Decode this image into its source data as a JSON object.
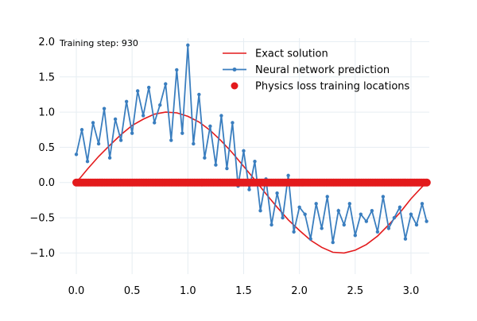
{
  "chart_data": {
    "type": "line",
    "annotation": "Training step: 930",
    "xlim": [
      0,
      3.1416
    ],
    "ylim": [
      -1.3,
      2.05
    ],
    "grid": true,
    "legend_position": "top-right",
    "x_ticks": [
      0.0,
      0.5,
      1.0,
      1.5,
      2.0,
      2.5,
      3.0
    ],
    "x_tick_labels": [
      "0.0",
      "0.5",
      "1.0",
      "1.5",
      "2.0",
      "2.5",
      "3.0"
    ],
    "y_ticks": [
      -1.0,
      -0.5,
      0.0,
      0.5,
      1.0,
      1.5,
      2.0
    ],
    "y_tick_labels": [
      "−1.0",
      "−0.5",
      "0.0",
      "0.5",
      "1.0",
      "1.5",
      "2.0"
    ],
    "series": [
      {
        "name": "Exact solution",
        "kind": "line",
        "color": "#e31a1c",
        "x": [
          0,
          0.1,
          0.2,
          0.3,
          0.4,
          0.5,
          0.6,
          0.7,
          0.8,
          0.9,
          1.0,
          1.1,
          1.2,
          1.3,
          1.4,
          1.5,
          1.6,
          1.7,
          1.8,
          1.9,
          2.0,
          2.1,
          2.2,
          2.3,
          2.4,
          2.5,
          2.6,
          2.7,
          2.8,
          2.9,
          3.0,
          3.1,
          3.1416
        ],
        "y": [
          0.0,
          0.19,
          0.37,
          0.53,
          0.68,
          0.81,
          0.9,
          0.97,
          1.0,
          0.99,
          0.94,
          0.86,
          0.74,
          0.59,
          0.42,
          0.23,
          0.04,
          -0.16,
          -0.35,
          -0.53,
          -0.68,
          -0.82,
          -0.92,
          -0.99,
          -1.0,
          -0.96,
          -0.88,
          -0.76,
          -0.6,
          -0.43,
          -0.23,
          -0.06,
          0.0
        ]
      },
      {
        "name": "Neural network prediction",
        "kind": "line-marker",
        "color": "#3a7ebf",
        "x": [
          0.0,
          0.05,
          0.1,
          0.15,
          0.2,
          0.25,
          0.3,
          0.35,
          0.4,
          0.45,
          0.5,
          0.55,
          0.6,
          0.65,
          0.7,
          0.75,
          0.8,
          0.85,
          0.9,
          0.95,
          1.0,
          1.05,
          1.1,
          1.15,
          1.2,
          1.25,
          1.3,
          1.35,
          1.4,
          1.45,
          1.5,
          1.55,
          1.6,
          1.65,
          1.7,
          1.75,
          1.8,
          1.85,
          1.9,
          1.95,
          2.0,
          2.05,
          2.1,
          2.15,
          2.2,
          2.25,
          2.3,
          2.35,
          2.4,
          2.45,
          2.5,
          2.55,
          2.6,
          2.65,
          2.7,
          2.75,
          2.8,
          2.85,
          2.9,
          2.95,
          3.0,
          3.05,
          3.1,
          3.14
        ],
        "y": [
          0.4,
          0.75,
          0.3,
          0.85,
          0.55,
          1.05,
          0.35,
          0.9,
          0.6,
          1.15,
          0.7,
          1.3,
          0.95,
          1.35,
          0.85,
          1.1,
          1.4,
          0.6,
          1.6,
          0.7,
          1.95,
          0.55,
          1.25,
          0.35,
          0.8,
          0.25,
          0.95,
          0.2,
          0.85,
          -0.05,
          0.45,
          -0.1,
          0.3,
          -0.4,
          0.05,
          -0.6,
          -0.15,
          -0.5,
          0.1,
          -0.7,
          -0.35,
          -0.45,
          -0.8,
          -0.3,
          -0.65,
          -0.2,
          -0.85,
          -0.4,
          -0.6,
          -0.3,
          -0.75,
          -0.45,
          -0.55,
          -0.4,
          -0.7,
          -0.2,
          -0.65,
          -0.5,
          -0.35,
          -0.8,
          -0.45,
          -0.6,
          -0.3,
          -0.55
        ]
      },
      {
        "name": "Physics loss training locations",
        "kind": "scatter",
        "color": "#e31a1c",
        "x_range": [
          0,
          3.1416
        ],
        "y": 0.0,
        "count": 200
      }
    ]
  }
}
